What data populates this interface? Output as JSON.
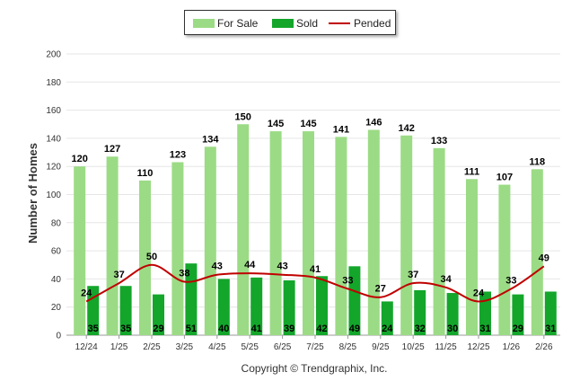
{
  "chart_data": {
    "type": "bar",
    "title": "",
    "xlabel": "",
    "ylabel": "Number of Homes",
    "ylim": [
      0,
      200
    ],
    "yticks": [
      0,
      20,
      40,
      60,
      80,
      100,
      120,
      140,
      160,
      180,
      200
    ],
    "categories": [
      "12/24",
      "1/25",
      "2/25",
      "3/25",
      "4/25",
      "5/25",
      "6/25",
      "7/25",
      "8/25",
      "9/25",
      "10/25",
      "11/25",
      "12/25",
      "1/26",
      "2/26"
    ],
    "series": [
      {
        "name": "For Sale",
        "kind": "bar",
        "color": "#9bdb85",
        "values": [
          120,
          127,
          110,
          123,
          134,
          150,
          145,
          145,
          141,
          146,
          142,
          133,
          111,
          107,
          118
        ]
      },
      {
        "name": "Sold",
        "kind": "bar",
        "color": "#13a62b",
        "values": [
          35,
          35,
          29,
          51,
          40,
          41,
          39,
          42,
          49,
          24,
          32,
          30,
          31,
          29,
          31
        ]
      },
      {
        "name": "Pended",
        "kind": "line",
        "color": "#c00000",
        "values": [
          24,
          37,
          50,
          38,
          43,
          44,
          43,
          41,
          33,
          27,
          37,
          34,
          24,
          33,
          49
        ]
      }
    ],
    "legend": {
      "position": "top-center"
    }
  },
  "footer": {
    "copyright": "Copyright © Trendgraphix, Inc."
  }
}
